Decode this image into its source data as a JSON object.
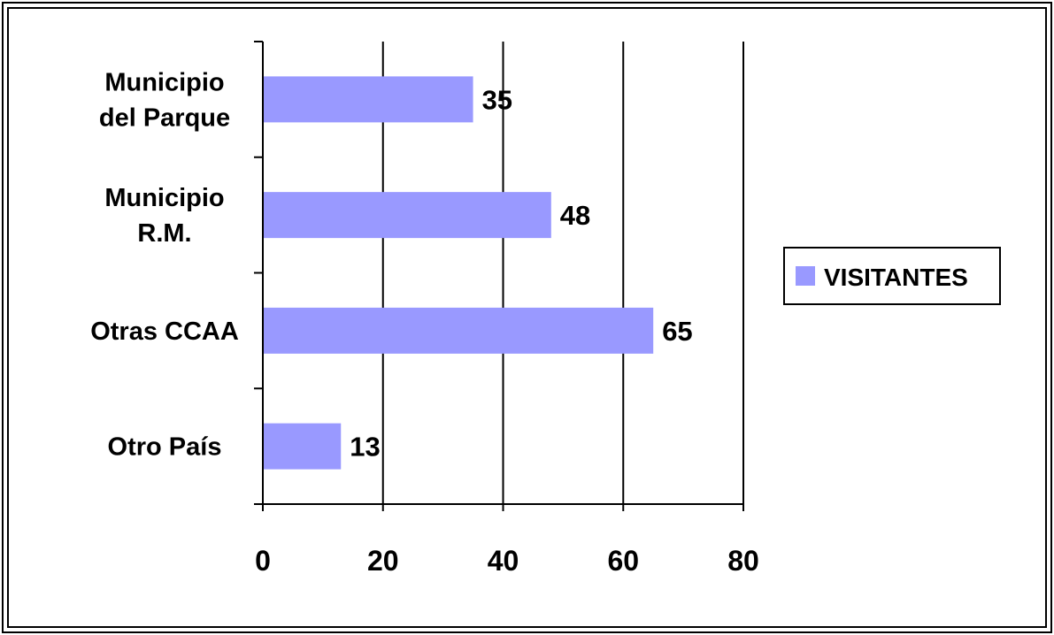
{
  "chart_data": {
    "type": "bar",
    "orientation": "horizontal",
    "categories": [
      [
        "Municipio",
        "del Parque"
      ],
      [
        "Municipio",
        "R.M."
      ],
      [
        "Otras CCAA"
      ],
      [
        "Otro País"
      ]
    ],
    "series": [
      {
        "name": "VISITANTES",
        "values": [
          35,
          48,
          65,
          13
        ],
        "color": "#9999ff"
      }
    ],
    "data_labels": [
      "35",
      "48",
      "65",
      "13"
    ],
    "xlim": [
      0,
      80
    ],
    "xticks": [
      0,
      20,
      40,
      60,
      80
    ],
    "xtick_labels": [
      "0",
      "20",
      "40",
      "60",
      "80"
    ],
    "grid": "vertical",
    "legend_position": "right",
    "title": "",
    "xlabel": "",
    "ylabel": ""
  }
}
